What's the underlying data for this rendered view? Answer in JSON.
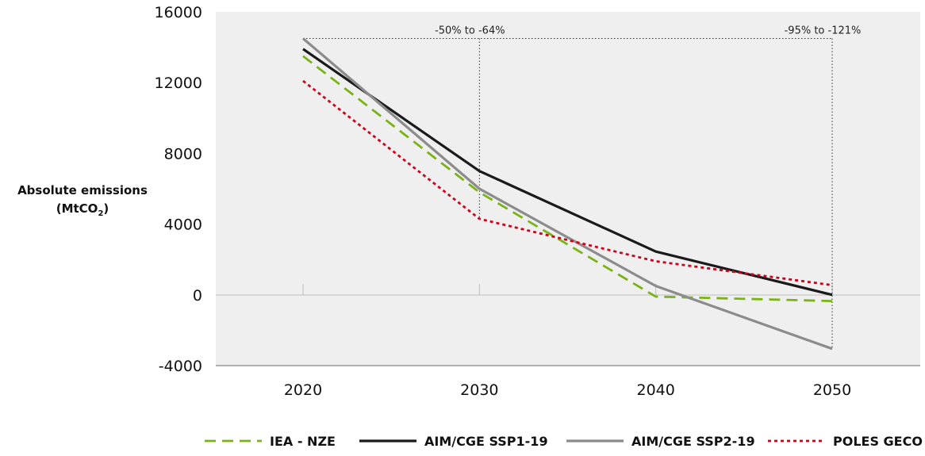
{
  "chart_data": {
    "type": "line",
    "ylabel_line1": "Absolute emissions",
    "ylabel_line2": "(MtCO",
    "ylabel_sub": "2",
    "ylabel_close": ")",
    "x": [
      2020,
      2030,
      2040,
      2050
    ],
    "x_tick_labels": [
      "2020",
      "2030",
      "2040",
      "2050"
    ],
    "ylim": [
      -4000,
      16000
    ],
    "y_ticks": [
      -4000,
      0,
      4000,
      8000,
      12000,
      16000
    ],
    "y_tick_labels": [
      "-4000",
      "0",
      "4000",
      "8000",
      "12000",
      "16000"
    ],
    "grid": false,
    "legend_position": "bottom",
    "series": [
      {
        "name": "IEA - NZE",
        "values": [
          13500,
          5800,
          -100,
          -350
        ],
        "color": "#7ab317",
        "dash": "dashed"
      },
      {
        "name": "AIM/CGE SSP1-19",
        "values": [
          13900,
          7000,
          2450,
          0
        ],
        "color": "#1a1a1a",
        "dash": "solid"
      },
      {
        "name": "AIM/CGE SSP2-19",
        "values": [
          14500,
          6000,
          500,
          -3050
        ],
        "color": "#8c8c8c",
        "dash": "solid"
      },
      {
        "name": "POLES GECO",
        "values": [
          12100,
          4300,
          1900,
          550
        ],
        "color": "#d0021b",
        "dash": "dotted"
      }
    ],
    "annotations": [
      {
        "text": "-50% to -64%",
        "x": 2030,
        "y_from": 14500,
        "y_to": 4300
      },
      {
        "text": "-95% to -121%",
        "x": 2050,
        "y_from": 14500,
        "y_to": -3050
      }
    ]
  }
}
